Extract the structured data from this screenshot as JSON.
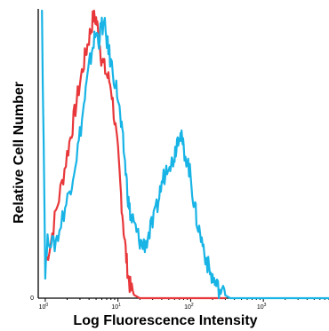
{
  "chart_data": {
    "type": "line",
    "title": "",
    "xlabel": "Log Fluorescence Intensity",
    "ylabel": "Relative Cell Number",
    "x_scale": "log",
    "xlim": [
      0.8,
      8000
    ],
    "ylim": [
      0,
      100
    ],
    "grid": false,
    "legend": "none",
    "x_ticks": [
      {
        "value": 1,
        "base": "10",
        "exp": "0"
      },
      {
        "value": 10,
        "base": "10",
        "exp": "1"
      },
      {
        "value": 100,
        "base": "10",
        "exp": "2"
      },
      {
        "value": 1000,
        "base": "10",
        "exp": "3"
      }
    ],
    "y_ticks": [
      {
        "value": 0,
        "label": "0"
      }
    ],
    "series": [
      {
        "color": "#e8373a",
        "points": [
          [
            1.0,
            12
          ],
          [
            1.2,
            20
          ],
          [
            1.4,
            30
          ],
          [
            1.7,
            40
          ],
          [
            2.0,
            50
          ],
          [
            2.3,
            58
          ],
          [
            2.6,
            66
          ],
          [
            3.0,
            75
          ],
          [
            3.4,
            82
          ],
          [
            3.8,
            88
          ],
          [
            4.2,
            93
          ],
          [
            4.6,
            98
          ],
          [
            5.0,
            97
          ],
          [
            5.4,
            92
          ],
          [
            5.9,
            84
          ],
          [
            6.5,
            80
          ],
          [
            7.2,
            77
          ],
          [
            8.0,
            74
          ],
          [
            9.0,
            62
          ],
          [
            10.0,
            50
          ],
          [
            11.0,
            36
          ],
          [
            12.0,
            24
          ],
          [
            13.0,
            14
          ],
          [
            14.0,
            7
          ],
          [
            15.0,
            3
          ],
          [
            17.0,
            1
          ],
          [
            20.0,
            0
          ],
          [
            40.0,
            0
          ],
          [
            100.0,
            0
          ],
          [
            300.0,
            0
          ]
        ]
      },
      {
        "color": "#18b4e6",
        "points": [
          [
            0.9,
            100
          ],
          [
            1.0,
            10
          ],
          [
            1.1,
            22
          ],
          [
            1.3,
            18
          ],
          [
            1.5,
            22
          ],
          [
            1.8,
            30
          ],
          [
            2.1,
            36
          ],
          [
            2.4,
            43
          ],
          [
            2.8,
            52
          ],
          [
            3.2,
            62
          ],
          [
            3.6,
            72
          ],
          [
            4.0,
            80
          ],
          [
            4.5,
            88
          ],
          [
            5.0,
            92
          ],
          [
            5.5,
            90
          ],
          [
            6.0,
            95
          ],
          [
            6.6,
            94
          ],
          [
            7.2,
            88
          ],
          [
            8.0,
            82
          ],
          [
            9.0,
            76
          ],
          [
            10.0,
            70
          ],
          [
            11.0,
            60
          ],
          [
            12.0,
            52
          ],
          [
            13.0,
            42
          ],
          [
            14.0,
            33
          ],
          [
            15.0,
            28
          ],
          [
            16.0,
            27
          ],
          [
            18.0,
            23
          ],
          [
            20.0,
            20
          ],
          [
            22.0,
            18
          ],
          [
            25.0,
            20
          ],
          [
            28.0,
            24
          ],
          [
            32.0,
            28
          ],
          [
            36.0,
            34
          ],
          [
            40.0,
            40
          ],
          [
            45.0,
            44
          ],
          [
            50.0,
            48
          ],
          [
            55.0,
            47
          ],
          [
            60.0,
            50
          ],
          [
            65.0,
            55
          ],
          [
            70.0,
            58
          ],
          [
            75.0,
            55
          ],
          [
            80.0,
            52
          ],
          [
            90.0,
            48
          ],
          [
            100.0,
            42
          ],
          [
            110.0,
            34
          ],
          [
            120.0,
            28
          ],
          [
            135.0,
            22
          ],
          [
            150.0,
            18
          ],
          [
            170.0,
            12
          ],
          [
            190.0,
            8
          ],
          [
            210.0,
            6
          ],
          [
            230.0,
            4
          ],
          [
            260.0,
            2
          ],
          [
            300.0,
            1
          ],
          [
            350.0,
            0
          ],
          [
            500.0,
            0
          ],
          [
            1000.0,
            0
          ],
          [
            3000.0,
            0
          ],
          [
            8000.0,
            0
          ]
        ]
      }
    ]
  }
}
